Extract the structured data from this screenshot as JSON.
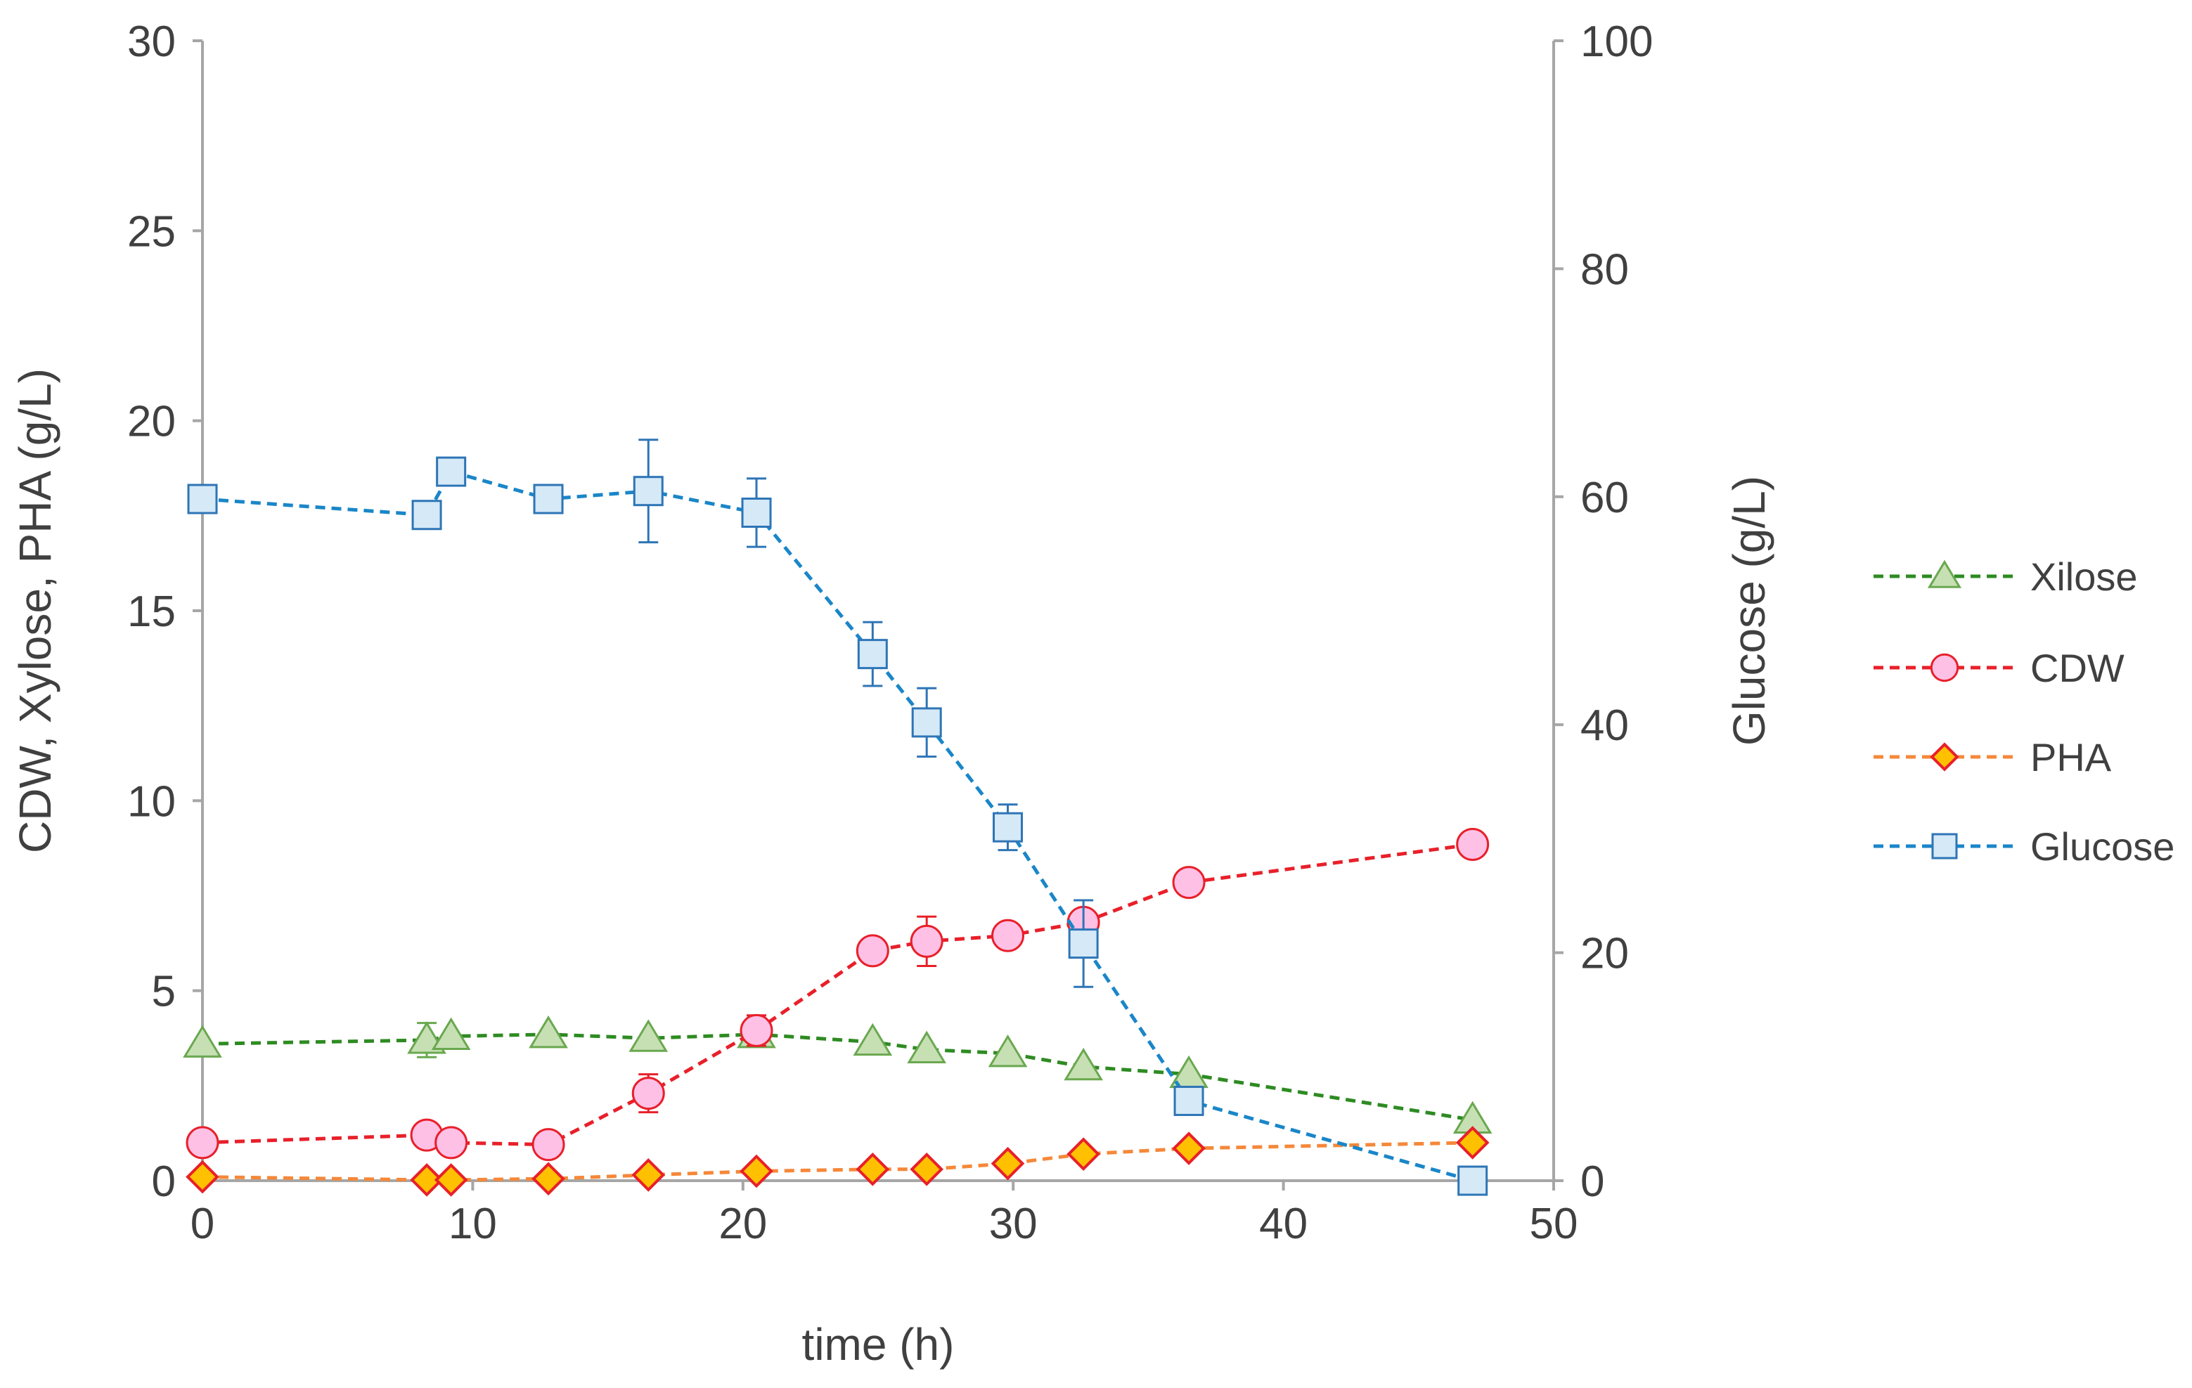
{
  "chart_data": {
    "type": "line",
    "title": "",
    "xlabel": "time (h)",
    "ylabel_left": "CDW, Xylose, PHA (g/L)",
    "ylabel_right": "Glucose (g/L)",
    "xlim": [
      0,
      50
    ],
    "ylim_left": [
      0,
      30
    ],
    "ylim_right": [
      0,
      100
    ],
    "x_ticks": [
      "0",
      "10",
      "20",
      "30",
      "40",
      "50"
    ],
    "y_left_ticks": [
      "0",
      "5",
      "10",
      "15",
      "20",
      "25",
      "30"
    ],
    "y_right_ticks": [
      "0",
      "20",
      "40",
      "60",
      "80",
      "100"
    ],
    "grid": false,
    "legend_position": "right",
    "series": [
      {
        "name": "Xilose",
        "axis": "left",
        "marker": "triangle",
        "line_color": "#2e8b22",
        "fill_color": "#c6e0b4",
        "stroke_color": "#6aa84f",
        "x": [
          0,
          8.3,
          9.2,
          12.8,
          16.5,
          20.5,
          24.8,
          26.8,
          29.8,
          32.6,
          36.5,
          47
        ],
        "y": [
          3.6,
          3.7,
          3.8,
          3.85,
          3.75,
          3.85,
          3.65,
          3.45,
          3.35,
          3.0,
          2.8,
          1.6
        ],
        "err": [
          0,
          0.45,
          0,
          0,
          0,
          0,
          0,
          0,
          0,
          0,
          0,
          0
        ]
      },
      {
        "name": "CDW",
        "axis": "left",
        "marker": "circle",
        "line_color": "#e8202a",
        "fill_color": "#ffc0e6",
        "stroke_color": "#e8202a",
        "x": [
          0,
          8.3,
          9.2,
          12.8,
          16.5,
          20.5,
          24.8,
          26.8,
          29.8,
          32.6,
          36.5,
          47
        ],
        "y": [
          1.0,
          1.2,
          1.0,
          0.95,
          2.3,
          3.95,
          6.05,
          6.3,
          6.45,
          6.8,
          7.85,
          8.85
        ],
        "err": [
          0,
          0,
          0,
          0,
          0.5,
          0.4,
          0,
          0.65,
          0,
          0.3,
          0,
          0
        ]
      },
      {
        "name": "PHA",
        "axis": "left",
        "marker": "diamond",
        "line_color": "#f5883a",
        "fill_color": "#ffc000",
        "stroke_color": "#e8202a",
        "x": [
          0,
          8.3,
          9.2,
          12.8,
          16.5,
          20.5,
          24.8,
          26.8,
          29.8,
          32.6,
          36.5,
          47
        ],
        "y": [
          0.1,
          0.02,
          0.02,
          0.05,
          0.15,
          0.25,
          0.3,
          0.3,
          0.45,
          0.7,
          0.85,
          1.0
        ],
        "err": [
          0,
          0,
          0,
          0,
          0,
          0,
          0,
          0,
          0,
          0,
          0,
          0
        ]
      },
      {
        "name": "Glucose",
        "axis": "right",
        "marker": "square",
        "line_color": "#1a86c8",
        "fill_color": "#d5e9f7",
        "stroke_color": "#2e75b6",
        "x": [
          0,
          8.3,
          9.2,
          12.8,
          16.5,
          20.5,
          24.8,
          26.8,
          29.8,
          32.6,
          36.5,
          47
        ],
        "y": [
          59.8,
          58.4,
          62.2,
          59.8,
          60.5,
          58.6,
          46.2,
          40.2,
          31.0,
          20.8,
          7.0,
          0.0
        ],
        "err": [
          0,
          0,
          0,
          0,
          4.5,
          3.0,
          2.8,
          3.0,
          2.0,
          3.8,
          0,
          0
        ]
      }
    ]
  }
}
